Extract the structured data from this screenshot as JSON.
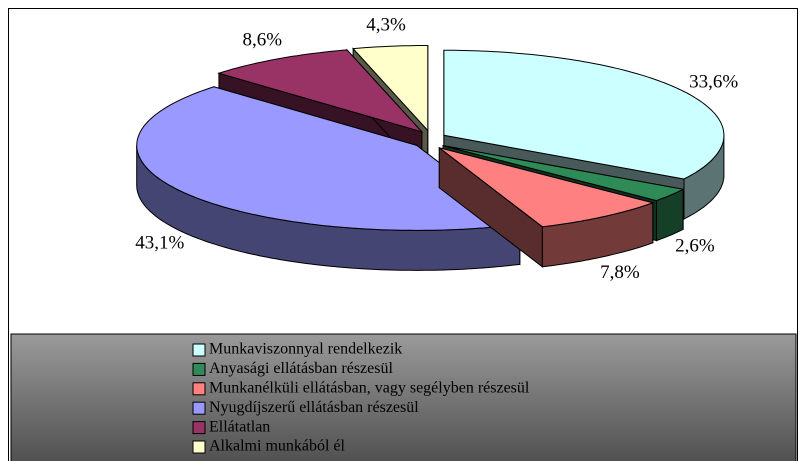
{
  "chart_data": {
    "type": "pie3d",
    "categories": [
      "Munkaviszonnyal rendelkezik",
      "Anyasági ellátásban részesül",
      "Munkanélküli ellátásban, vagy segélyben részesül",
      "Nyugdíjszerű ellátásban részesül",
      "Ellátatlan",
      "Alkalmi munkából él"
    ],
    "values": [
      33.6,
      2.6,
      7.8,
      43.1,
      8.6,
      4.3
    ],
    "value_labels": [
      "33,6%",
      "2,6%",
      "7,8%",
      "43,1%",
      "8,6%",
      "4,3%"
    ],
    "colors": [
      "#ccffff",
      "#2e8b57",
      "#ff8080",
      "#9999ff",
      "#993366",
      "#ffffcc"
    ]
  }
}
